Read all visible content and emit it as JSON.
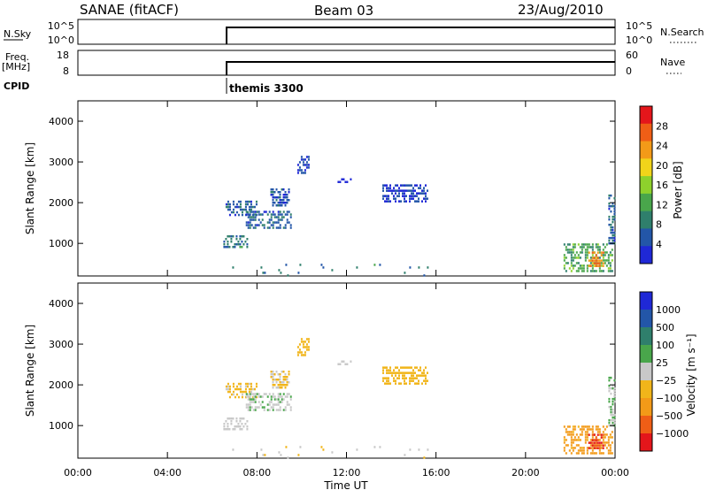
{
  "header": {
    "station": "SANAE (fitACF)",
    "beam": "Beam 03",
    "date": "23/Aug/2010"
  },
  "strips": {
    "nsky_label": "N.Sky",
    "nsky_ticks": [
      "10^5",
      "10^0"
    ],
    "nsearch_label": "N.Search",
    "freq_label_1": "Freq.",
    "freq_label_2": "[MHz]",
    "freq_ticks": [
      "18",
      "8"
    ],
    "nave_label": "Nave",
    "nave_ticks": [
      "60",
      "0"
    ],
    "cpid_label": "CPID",
    "cpid_value": "themis 3300"
  },
  "colors": {
    "power_scale": [
      "#1f28d6",
      "#2356a8",
      "#2f7f6c",
      "#49a64b",
      "#8ed12c",
      "#f1d41a",
      "#f39a18",
      "#ef5e16",
      "#e4161b"
    ],
    "velocity_scale": [
      "#1f28d6",
      "#2356a8",
      "#2f7f6c",
      "#49a64b",
      "#c8c8c8",
      "#f1b51a",
      "#f39a18",
      "#ef5e16",
      "#e4161b"
    ]
  },
  "chart_data": [
    {
      "type": "heatmap",
      "name": "power",
      "ylabel": "Slant Range [km]",
      "yticks": [
        "4000",
        "3000",
        "2000",
        "1000"
      ],
      "ylim": [
        200,
        4500
      ],
      "xlim": [
        0,
        24
      ],
      "colorbar": {
        "label": "Power [dB]",
        "ticks": [
          "28",
          "24",
          "20",
          "16",
          "12",
          "8",
          "4"
        ],
        "range": [
          0,
          32
        ]
      },
      "patches": [
        {
          "t0": 6.5,
          "t1": 7.6,
          "r0": 900,
          "r1": 1200,
          "value": 8
        },
        {
          "t0": 6.6,
          "t1": 8.0,
          "r0": 1700,
          "r1": 2050,
          "value": 6
        },
        {
          "t0": 7.5,
          "t1": 9.5,
          "r0": 1350,
          "r1": 1800,
          "value": 6
        },
        {
          "t0": 8.6,
          "t1": 9.4,
          "r0": 1950,
          "r1": 2350,
          "value": 5
        },
        {
          "t0": 9.8,
          "t1": 10.3,
          "r0": 2750,
          "r1": 3150,
          "value": 4
        },
        {
          "t0": 11.6,
          "t1": 12.3,
          "r0": 2500,
          "r1": 2600,
          "value": 4
        },
        {
          "t0": 13.6,
          "t1": 15.6,
          "r0": 2050,
          "r1": 2450,
          "value": 4
        },
        {
          "t0": 21.7,
          "t1": 23.9,
          "r0": 300,
          "r1": 1000,
          "value": 12
        },
        {
          "t0": 22.8,
          "t1": 23.5,
          "r0": 450,
          "r1": 800,
          "value": 24
        },
        {
          "t0": 23.7,
          "t1": 24.0,
          "r0": 1000,
          "r1": 2200,
          "value": 6
        },
        {
          "t0": 6.5,
          "t1": 16.0,
          "r0": 200,
          "r1": 500,
          "value": 8
        }
      ]
    },
    {
      "type": "heatmap",
      "name": "velocity",
      "ylabel": "Slant Range [km]",
      "yticks": [
        "4000",
        "3000",
        "2000",
        "1000"
      ],
      "ylim": [
        200,
        4500
      ],
      "xlim": [
        0,
        24
      ],
      "xlabel": "Time UT",
      "xticks": [
        "00:00",
        "04:00",
        "08:00",
        "12:00",
        "16:00",
        "20:00",
        "00:00"
      ],
      "colorbar": {
        "label": "Velocity [m s⁻¹]",
        "ticks": [
          "1000",
          "500",
          "100",
          "25",
          "−25",
          "−100",
          "−500",
          "−1000"
        ],
        "range": [
          -1000,
          1000
        ]
      },
      "patches": [
        {
          "t0": 6.5,
          "t1": 7.6,
          "r0": 900,
          "r1": 1200,
          "value": -30
        },
        {
          "t0": 6.6,
          "t1": 8.0,
          "r0": 1700,
          "r1": 2050,
          "value": -150
        },
        {
          "t0": 7.5,
          "t1": 9.5,
          "r0": 1350,
          "r1": 1800,
          "value": 80
        },
        {
          "t0": 8.6,
          "t1": 9.4,
          "r0": 1950,
          "r1": 2350,
          "value": -120
        },
        {
          "t0": 9.8,
          "t1": 10.3,
          "r0": 2750,
          "r1": 3150,
          "value": -200
        },
        {
          "t0": 11.6,
          "t1": 12.3,
          "r0": 2500,
          "r1": 2600,
          "value": 10
        },
        {
          "t0": 13.6,
          "t1": 15.6,
          "r0": 2050,
          "r1": 2450,
          "value": -200
        },
        {
          "t0": 21.7,
          "t1": 23.9,
          "r0": 300,
          "r1": 1000,
          "value": -400
        },
        {
          "t0": 22.8,
          "t1": 23.5,
          "r0": 450,
          "r1": 800,
          "value": -800
        },
        {
          "t0": 23.7,
          "t1": 24.0,
          "r0": 1000,
          "r1": 2200,
          "value": 90
        },
        {
          "t0": 6.5,
          "t1": 16.0,
          "r0": 200,
          "r1": 500,
          "value": -60
        }
      ]
    }
  ]
}
